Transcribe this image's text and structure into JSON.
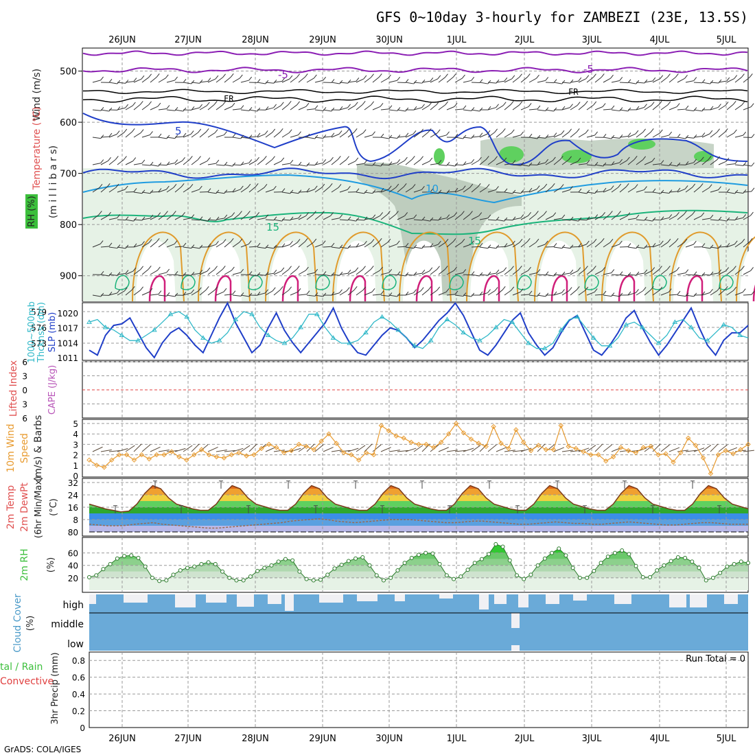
{
  "title": "GFS 0~10day 3-hourly for ZAMBEZI (23E, 13.5S)",
  "footer": "GrADS: COLA/IGES",
  "dates": [
    "26JUN",
    "27JUN",
    "28JUN",
    "29JUN",
    "30JUN",
    "1JUL",
    "2JUL",
    "3JUL",
    "4JUL",
    "5JUL"
  ],
  "colors": {
    "grid": "#999999",
    "freezing": "#000000",
    "temp_minus5": "#8b1fb4",
    "temp_5": "#1f3ec8",
    "temp_10": "#1e9be0",
    "temp_15": "#1ab37a",
    "temp_20": "#e09b2c",
    "temp_25": "#d01f7a",
    "rh_light": "#e6f2e6",
    "rh_mid": "#b9c9b9",
    "rh_high": "#5fd05f",
    "slp": "#1f3ec8",
    "thickness": "#2fb8c8",
    "cape": "#b855b8",
    "lifted": "#e04040",
    "wind10": "#e89b30",
    "rh2m": "#3cbf3c",
    "cloud": "#6aaad8",
    "cloud_gap": "#f0f0f4",
    "dewpt": "#9a6a50"
  },
  "labels": {
    "p1_wind": "Wind (m/s)",
    "p1_temp": "Temperature (°C)",
    "p1_rh": "RH (%)",
    "p1_units": "(m i l l i b a r s)",
    "p2_thick": "1000~500mb",
    "p2_thick2": "Thcknss (dm)",
    "p2_slp": "SLP (mb)",
    "p3_li": "Lifted Index",
    "p3_cape": "CAPE (J/kg)",
    "p4_wind": "10m Wind",
    "p4_speed": "Speed",
    "p4_units": "(m/s) & Barbs",
    "p5_temp": "2m Temp",
    "p5_dew": "2m DewPt",
    "p5_minmax": "(6hr Min/Max)",
    "p5_units": "(°C)",
    "p6_rh": "2m RH",
    "p6_units": "(%)",
    "p7_cloud": "Cloud Cover",
    "p7_units": "(%)",
    "p8_rain": "tal / Rain",
    "p8_conv": "Convective",
    "p8_precip": "3hr Precip (mm)",
    "run_total": "Run Total = 0",
    "fr": "FR",
    "c_minus5": "-5",
    "c_5": "5",
    "c_10": "10",
    "c_15": "15",
    "cloud_high": "high",
    "cloud_middle": "middle",
    "cloud_low": "low"
  },
  "chart_data": [
    {
      "panel": "upper-air",
      "type": "heatmap",
      "ylabel": "Wind (m/s) Temperature (°C) RH (%) (millibars)",
      "yticks": [
        500,
        600,
        700,
        800,
        900
      ],
      "contours_temperature": [
        {
          "label": "-5",
          "pressure": 500
        },
        {
          "label": "FR",
          "pressure": 555
        },
        {
          "label": "5",
          "pressure": 610
        },
        {
          "label": "10",
          "pressure": 715
        },
        {
          "label": "15",
          "pressure": 800
        }
      ],
      "rh_contours": [
        10,
        30,
        50,
        70
      ]
    },
    {
      "panel": "thickness-slp",
      "type": "line",
      "yticks_left": [
        573,
        576,
        579
      ],
      "yticks_right": [
        1011,
        1014,
        1017,
        1020
      ],
      "series": [
        {
          "name": "SLP (mb)",
          "values": [
            1012.5,
            1011.5,
            1015.5,
            1017.5,
            1017.8,
            1019,
            1016,
            1013,
            1011,
            1014,
            1016,
            1017,
            1015.5,
            1013.5,
            1012,
            1015.5,
            1019,
            1022,
            1018,
            1015,
            1012,
            1013.5,
            1017,
            1020,
            1016.5,
            1014,
            1012,
            1014,
            1016,
            1018,
            1021,
            1017,
            1014,
            1012,
            1011.5,
            1013.5,
            1015.5,
            1017,
            1016.5,
            1015,
            1013,
            1014.5,
            1016.5,
            1018.5,
            1020,
            1022,
            1019.5,
            1016,
            1012.5,
            1011.5,
            1013.5,
            1016,
            1018.5,
            1020,
            1016,
            1013.5,
            1011.5,
            1013,
            1016,
            1018.5,
            1019.5,
            1016,
            1012.5,
            1011.5,
            1013.5,
            1016,
            1019,
            1020.5,
            1017,
            1014,
            1011.5,
            1013.5,
            1016,
            1018.5,
            1021,
            1017,
            1013.5,
            1011.5,
            1014.5,
            1016,
            1016,
            1017.5
          ]
        },
        {
          "name": "1000~500mb Thcknss (dm)",
          "values": [
            577,
            577.5,
            576,
            575.5,
            574.5,
            573.5,
            573.5,
            574.5,
            575.5,
            577,
            578.5,
            579,
            578,
            575.5,
            574,
            573,
            573.5,
            575,
            577.5,
            579,
            578.5,
            576,
            574.5,
            573.5,
            573,
            574,
            576,
            578.5,
            578.5,
            576,
            574,
            573,
            573,
            573.5,
            575,
            577,
            578,
            577,
            575.5,
            574,
            572.5,
            572,
            573.5,
            576,
            577.5,
            576.5,
            575,
            574,
            573.5,
            574.5,
            576,
            577.5,
            577,
            575,
            573,
            572,
            572,
            573,
            575.5,
            577.5,
            578,
            576,
            574,
            572.5,
            572.5,
            574,
            576.5,
            577,
            576,
            574.5,
            573,
            574.5,
            577,
            577.5,
            576,
            574,
            573.5,
            575,
            576.5,
            576,
            574.5,
            574
          ]
        }
      ]
    },
    {
      "panel": "lifted-cape",
      "type": "line",
      "yticks": [
        -6,
        -3,
        0,
        3,
        6
      ],
      "series": [
        {
          "name": "Lifted Index",
          "values": []
        },
        {
          "name": "CAPE (J/kg)",
          "values": []
        }
      ]
    },
    {
      "panel": "wind10m",
      "type": "line",
      "ylabel": "(m/s)",
      "yticks": [
        0,
        1,
        2,
        3,
        4,
        5
      ],
      "series": [
        {
          "name": "10m Wind Speed",
          "values": [
            1.5,
            1,
            0.8,
            1.5,
            2,
            2,
            1.5,
            2,
            1.6,
            2,
            2,
            2.3,
            1.8,
            1.5,
            2,
            2.5,
            2,
            1.8,
            1.7,
            2,
            2.2,
            1.9,
            2,
            2.6,
            3,
            2.7,
            2.2,
            2.4,
            3,
            2.8,
            2.5,
            3.3,
            4,
            3.1,
            2.2,
            2,
            1.5,
            2.2,
            2,
            4.8,
            4.3,
            3.8,
            3.6,
            3.2,
            3,
            3,
            2.7,
            3.2,
            4,
            5,
            4.1,
            3.5,
            3.1,
            2.8,
            4.7,
            3.1,
            2.6,
            4.4,
            3.2,
            2.4,
            2.9,
            2.5,
            2.5,
            4.8,
            2.8,
            2.6,
            2.3,
            2,
            2,
            1.4,
            1.8,
            2.7,
            2.4,
            2.2,
            2.7,
            2.8,
            2,
            2.1,
            1.3,
            2.2,
            3.6,
            2.9,
            1.7,
            0.2,
            2,
            2.4,
            2.1,
            2.5,
            3
          ]
        }
      ]
    },
    {
      "panel": "temp2m",
      "type": "area",
      "ylabel": "(°C)",
      "yticks": [
        8,
        16,
        24,
        32
      ],
      "series": [
        {
          "name": "2m Temp",
          "values": [
            18,
            16.5,
            15,
            14,
            13,
            13.5,
            18,
            25,
            30,
            28,
            22,
            18,
            16.5,
            15,
            14,
            14,
            18,
            25,
            30,
            28,
            22,
            18,
            16.5,
            15,
            14,
            14,
            18,
            25,
            30,
            28,
            22,
            18,
            16.5,
            15,
            14,
            14,
            18,
            25,
            30,
            28,
            22,
            18,
            16.5,
            15,
            14,
            14,
            18,
            25,
            30,
            28,
            22,
            18,
            16.5,
            15,
            14,
            14,
            18,
            25,
            30,
            28,
            22,
            18,
            16.5,
            15,
            14,
            14,
            18,
            25,
            30,
            28,
            22,
            18,
            16.5,
            15,
            14,
            14,
            18,
            25,
            30,
            28,
            22,
            18,
            16.5,
            15
          ]
        },
        {
          "name": "2m DewPt",
          "values": [
            5,
            4.5,
            4,
            4,
            4.2,
            5,
            5.5,
            6,
            5,
            4.5,
            4,
            3.5,
            3,
            2.5,
            2.5,
            3,
            3.5,
            4,
            4.5,
            5,
            5.5,
            6,
            7,
            7.5,
            8,
            8.5,
            8,
            7,
            6.5,
            6,
            6.5,
            7,
            7.5,
            8,
            8,
            8,
            7.5,
            7,
            6.5,
            6,
            6,
            6.5,
            7,
            7,
            6.5,
            6,
            5.5,
            5,
            5,
            5.5,
            6,
            6.5,
            6,
            5.5,
            5.5,
            5,
            5,
            5.5,
            6,
            6.5,
            6,
            5.5,
            5,
            4.5,
            4.5,
            5,
            5.5,
            6,
            6,
            5.5,
            5,
            5,
            5
          ]
        }
      ]
    },
    {
      "panel": "rh2m",
      "type": "area",
      "ylabel": "(%)",
      "yticks": [
        20,
        40,
        60
      ],
      "series": [
        {
          "name": "2m RH",
          "values": [
            21,
            24,
            34,
            42,
            51,
            55,
            56,
            52,
            38,
            20,
            15,
            16,
            25,
            32,
            36,
            38,
            42,
            45,
            42,
            30,
            20,
            16,
            16,
            22,
            31,
            36,
            40,
            46,
            50,
            48,
            30,
            18,
            16,
            17,
            25,
            35,
            41,
            47,
            51,
            53,
            40,
            24,
            16,
            20,
            32,
            44,
            52,
            57,
            60,
            59,
            42,
            24,
            18,
            22,
            33,
            44,
            50,
            58,
            74,
            70,
            48,
            24,
            18,
            25,
            40,
            51,
            60,
            67,
            56,
            36,
            20,
            20,
            31,
            44,
            54,
            60,
            64,
            58,
            39,
            21,
            21,
            32,
            40,
            47,
            53,
            52,
            46,
            36,
            16,
            20,
            28,
            38,
            42,
            46,
            44
          ]
        }
      ]
    },
    {
      "panel": "cloud",
      "type": "heatmap",
      "ylabel": "(%)",
      "categories": [
        "high",
        "middle",
        "low"
      ]
    },
    {
      "panel": "precip",
      "type": "bar",
      "ylabel": "3hr Precip (mm)",
      "ylim": [
        0,
        0.9
      ],
      "yticks": [
        0,
        0.2,
        0.4,
        0.6,
        0.8
      ],
      "run_total": 0,
      "values": []
    }
  ]
}
